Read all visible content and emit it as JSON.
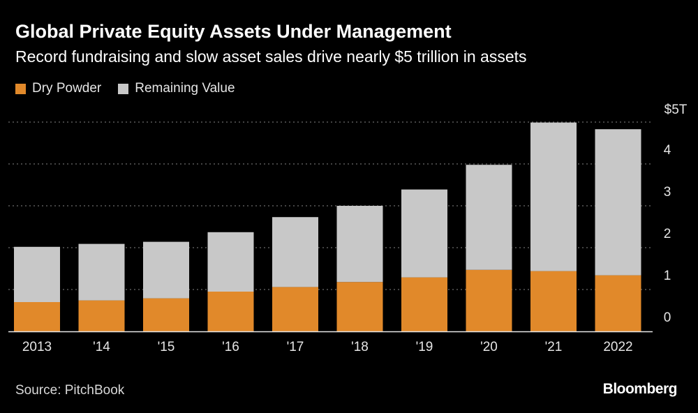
{
  "header": {
    "title": "Global Private Equity Assets Under Management",
    "subtitle": "Record fundraising and slow asset sales drive nearly $5 trillion in assets"
  },
  "chart_data": {
    "type": "bar",
    "stacked": true,
    "categories": [
      "2013",
      "'14",
      "'15",
      "'16",
      "'17",
      "'18",
      "'19",
      "'20",
      "'21",
      "2022"
    ],
    "series": [
      {
        "name": "Dry Powder",
        "color": "#e1892a",
        "values": [
          0.7,
          0.74,
          0.79,
          0.95,
          1.06,
          1.18,
          1.29,
          1.47,
          1.44,
          1.34
        ]
      },
      {
        "name": "Remaining Value",
        "color": "#c8c8c8",
        "values": [
          1.32,
          1.35,
          1.35,
          1.42,
          1.67,
          1.82,
          2.1,
          2.51,
          3.55,
          3.49
        ]
      }
    ],
    "y_ticks": [
      {
        "value": 0,
        "label": "0"
      },
      {
        "value": 1,
        "label": "1"
      },
      {
        "value": 2,
        "label": "2"
      },
      {
        "value": 3,
        "label": "3"
      },
      {
        "value": 4,
        "label": "4"
      },
      {
        "value": 5,
        "label": "$5T"
      }
    ],
    "ylim": [
      0,
      5
    ],
    "grid": true,
    "legend_position": "top-left",
    "title": "Global Private Equity Assets Under Management",
    "xlabel": "",
    "ylabel": ""
  },
  "footer": {
    "source": "Source: PitchBook",
    "brand": "Bloomberg"
  }
}
